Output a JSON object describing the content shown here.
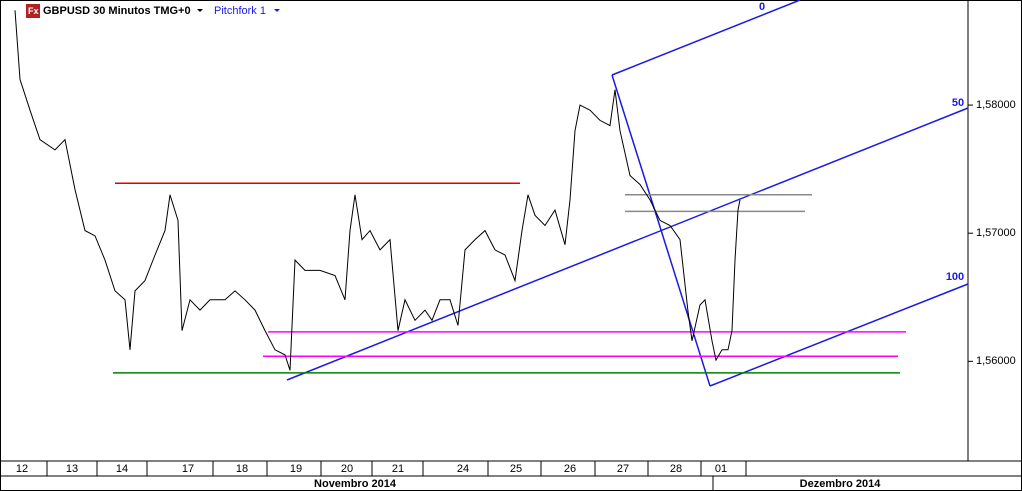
{
  "chart_data": {
    "type": "line",
    "title": "GBPUSD 30 Minutos TMG+0",
    "subtitle": "Pitchfork 1",
    "pitchfork_labels": [
      "0",
      "50",
      "100"
    ],
    "months": [
      "Novembro 2014",
      "Dezembro 2014"
    ],
    "xlim": [
      0,
      19.36
    ],
    "ylim": [
      1.5523,
      1.5882
    ],
    "yticks": [
      {
        "value": 1.58,
        "label": "1,58000"
      },
      {
        "value": 1.57,
        "label": "1,57000"
      },
      {
        "value": 1.56,
        "label": "1,56000"
      }
    ],
    "xticks": [
      {
        "value": 0.44,
        "label": "12"
      },
      {
        "value": 1.44,
        "label": "13"
      },
      {
        "value": 2.44,
        "label": "14"
      },
      {
        "value": 3.76,
        "label": "17"
      },
      {
        "value": 4.84,
        "label": "18"
      },
      {
        "value": 5.92,
        "label": "19"
      },
      {
        "value": 6.94,
        "label": "20"
      },
      {
        "value": 7.96,
        "label": "21"
      },
      {
        "value": 9.26,
        "label": "24"
      },
      {
        "value": 10.32,
        "label": "25"
      },
      {
        "value": 11.4,
        "label": "26"
      },
      {
        "value": 12.46,
        "label": "27"
      },
      {
        "value": 13.52,
        "label": "28"
      },
      {
        "value": 14.42,
        "label": "01"
      }
    ],
    "series": [
      {
        "name": "GBPUSD",
        "color": "#000000",
        "x": [
          0.3,
          0.4,
          0.6,
          0.8,
          1.1,
          1.3,
          1.5,
          1.7,
          1.9,
          2.1,
          2.3,
          2.5,
          2.6,
          2.7,
          2.9,
          3.1,
          3.3,
          3.4,
          3.56,
          3.64,
          3.8,
          4.0,
          4.2,
          4.5,
          4.7,
          4.9,
          5.1,
          5.3,
          5.5,
          5.7,
          5.8,
          5.9,
          6.1,
          6.4,
          6.7,
          6.9,
          7.0,
          7.1,
          7.24,
          7.4,
          7.6,
          7.8,
          7.96,
          8.1,
          8.3,
          8.5,
          8.64,
          8.8,
          9.0,
          9.16,
          9.3,
          9.5,
          9.7,
          9.9,
          10.1,
          10.3,
          10.44,
          10.56,
          10.7,
          10.9,
          11.1,
          11.3,
          11.4,
          11.5,
          11.6,
          11.8,
          12.0,
          12.2,
          12.3,
          12.4,
          12.6,
          12.8,
          13.0,
          13.2,
          13.4,
          13.6,
          13.76,
          13.84,
          14.0,
          14.1,
          14.24,
          14.32,
          14.44,
          14.56,
          14.64,
          14.7,
          14.76,
          14.8
        ],
        "values": [
          1.5874,
          1.582,
          1.5796,
          1.5773,
          1.5765,
          1.5773,
          1.5734,
          1.5702,
          1.5698,
          1.5679,
          1.5655,
          1.5648,
          1.5609,
          1.5655,
          1.5663,
          1.5683,
          1.5702,
          1.573,
          1.571,
          1.5624,
          1.5648,
          1.564,
          1.5648,
          1.5648,
          1.5655,
          1.5648,
          1.564,
          1.5624,
          1.5609,
          1.5605,
          1.5593,
          1.5679,
          1.5671,
          1.5671,
          1.5667,
          1.5648,
          1.5702,
          1.573,
          1.5695,
          1.5702,
          1.5687,
          1.5695,
          1.5624,
          1.5648,
          1.5632,
          1.564,
          1.5632,
          1.5648,
          1.5648,
          1.5628,
          1.5687,
          1.5695,
          1.5702,
          1.5687,
          1.5683,
          1.5663,
          1.5702,
          1.573,
          1.5714,
          1.5706,
          1.5718,
          1.5691,
          1.5726,
          1.578,
          1.58,
          1.5796,
          1.5788,
          1.5784,
          1.5812,
          1.578,
          1.5745,
          1.5738,
          1.5726,
          1.571,
          1.5706,
          1.5695,
          1.5639,
          1.5616,
          1.5644,
          1.5648,
          1.5616,
          1.5601,
          1.5609,
          1.5609,
          1.5624,
          1.5679,
          1.5718,
          1.5726
        ]
      }
    ],
    "levels": [
      {
        "value": 1.5739,
        "color": "#e00000",
        "x": [
          2.3,
          10.4
        ]
      },
      {
        "value": 1.5591,
        "color": "#008000",
        "x": [
          2.26,
          18.0
        ]
      },
      {
        "value": 1.5623,
        "color": "#ff00ff",
        "x": [
          5.36,
          18.12
        ]
      },
      {
        "value": 1.5604,
        "color": "#ff00ff",
        "x": [
          5.26,
          17.96
        ]
      },
      {
        "value": 1.573,
        "color": "#888888",
        "x": [
          12.5,
          16.24
        ]
      },
      {
        "value": 1.5717,
        "color": "#888888",
        "x": [
          12.5,
          16.1
        ]
      }
    ]
  }
}
